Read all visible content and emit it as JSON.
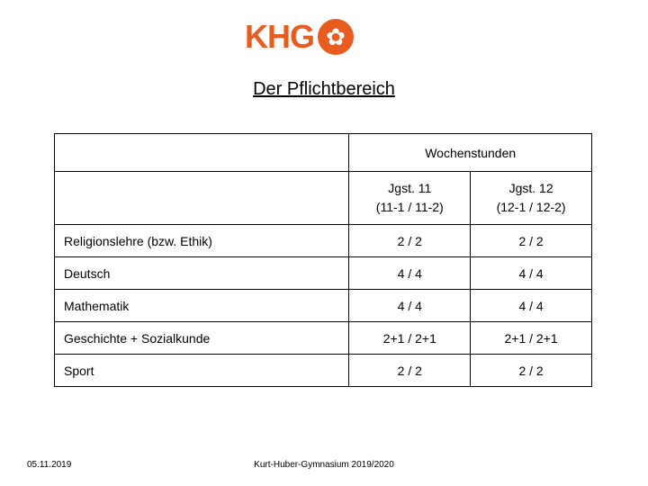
{
  "logo": {
    "text": "KHG",
    "icon_name": "rose-icon",
    "color": "#e85d1f"
  },
  "title": "Der Pflichtbereich",
  "table": {
    "header_top": {
      "blank": "",
      "wochenstunden": "Wochenstunden"
    },
    "header_sub": {
      "blank": "",
      "col1_line1": "Jgst. 11",
      "col1_line2": "(11-1 / 11-2)",
      "col2_line1": "Jgst. 12",
      "col2_line2": "(12-1 / 12-2)"
    },
    "rows": [
      {
        "subject": "Religionslehre (bzw. Ethik)",
        "v1": "2 / 2",
        "v2": "2 / 2"
      },
      {
        "subject": "Deutsch",
        "v1": "4 / 4",
        "v2": "4 / 4"
      },
      {
        "subject": "Mathematik",
        "v1": "4 / 4",
        "v2": "4 / 4"
      },
      {
        "subject": "Geschichte + Sozialkunde",
        "v1": "2+1 / 2+1",
        "v2": "2+1 / 2+1"
      },
      {
        "subject": "Sport",
        "v1": "2 / 2",
        "v2": "2 / 2"
      }
    ]
  },
  "footer": {
    "date": "05.11.2019",
    "source": "Kurt-Huber-Gymnasium 2019/2020"
  }
}
